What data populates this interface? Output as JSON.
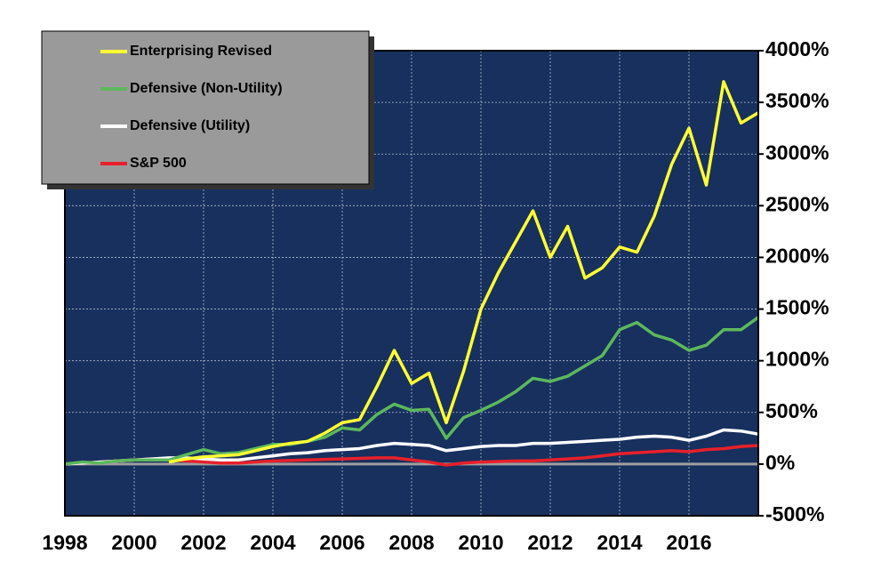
{
  "chart_data": {
    "type": "line",
    "x": [
      1998,
      1998.5,
      1999,
      1999.5,
      2000,
      2000.5,
      2001,
      2001.5,
      2002,
      2002.5,
      2003,
      2003.5,
      2004,
      2004.5,
      2005,
      2005.5,
      2006,
      2006.5,
      2007,
      2007.5,
      2008,
      2008.5,
      2009,
      2009.5,
      2010,
      2010.5,
      2011,
      2011.5,
      2012,
      2012.5,
      2013,
      2013.5,
      2014,
      2014.5,
      2015,
      2015.5,
      2016,
      2016.5,
      2017,
      2017.5,
      2018
    ],
    "series": [
      {
        "name": "Enterprising Revised",
        "color": "#ffff33",
        "values": [
          null,
          null,
          null,
          null,
          null,
          null,
          20,
          50,
          70,
          80,
          90,
          130,
          170,
          200,
          220,
          300,
          400,
          430,
          750,
          1100,
          780,
          880,
          400,
          900,
          1500,
          1850,
          2150,
          2450,
          2000,
          2300,
          1800,
          1900,
          2100,
          2050,
          2400,
          2900,
          3250,
          2700,
          3700,
          3300,
          3400
        ]
      },
      {
        "name": "Defensive (Non-Utility)",
        "color": "#5cb85c",
        "values": [
          0,
          20,
          10,
          30,
          40,
          40,
          40,
          90,
          140,
          100,
          110,
          150,
          190,
          190,
          220,
          260,
          350,
          330,
          480,
          580,
          520,
          530,
          250,
          450,
          520,
          600,
          700,
          830,
          800,
          850,
          950,
          1050,
          1300,
          1370,
          1250,
          1200,
          1100,
          1150,
          1300,
          1300,
          1420
        ]
      },
      {
        "name": "Defensive (Utility)",
        "color": "#ffffff",
        "values": [
          0,
          10,
          20,
          30,
          40,
          50,
          60,
          60,
          50,
          40,
          40,
          60,
          80,
          100,
          110,
          130,
          140,
          150,
          180,
          200,
          190,
          180,
          130,
          150,
          170,
          180,
          180,
          200,
          200,
          210,
          220,
          230,
          240,
          260,
          270,
          260,
          230,
          270,
          330,
          320,
          290
        ]
      },
      {
        "name": "S&P 500",
        "color": "#e8202a",
        "values": [
          0,
          10,
          20,
          30,
          40,
          50,
          40,
          30,
          20,
          10,
          10,
          20,
          30,
          35,
          40,
          45,
          50,
          55,
          60,
          60,
          40,
          20,
          -10,
          10,
          20,
          25,
          30,
          30,
          40,
          50,
          60,
          80,
          100,
          110,
          120,
          130,
          120,
          140,
          150,
          170,
          180
        ]
      }
    ],
    "xlim": [
      1998,
      2018
    ],
    "xticks": [
      1998,
      2000,
      2002,
      2004,
      2006,
      2008,
      2010,
      2012,
      2014,
      2016
    ],
    "ylim": [
      -500,
      4000
    ],
    "yticks": [
      {
        "value": -500,
        "label": "-500%"
      },
      {
        "value": 0,
        "label": "0%"
      },
      {
        "value": 500,
        "label": "500%"
      },
      {
        "value": 1000,
        "label": "1000%"
      },
      {
        "value": 1500,
        "label": "1500%"
      },
      {
        "value": 2000,
        "label": "2000%"
      },
      {
        "value": 2500,
        "label": "2500%"
      },
      {
        "value": 3000,
        "label": "3000%"
      },
      {
        "value": 3500,
        "label": "3500%"
      },
      {
        "value": 4000,
        "label": "4000%"
      }
    ],
    "grid": true,
    "legend": "upper left",
    "background": "#17305e"
  }
}
